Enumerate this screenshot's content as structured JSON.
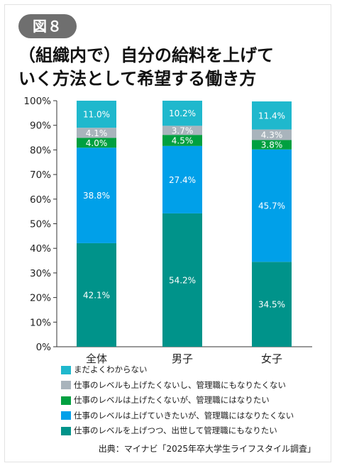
{
  "figure_label": "図８",
  "title_lines": [
    "（組織内で）自分の給料を上げて",
    "いく方法として希望する働き方"
  ],
  "source": "出典：マイナビ「2025年卒大学生ライフスタイル調査」",
  "chart_data": {
    "type": "bar",
    "stacked": true,
    "categories": [
      "全体",
      "男子",
      "女子"
    ],
    "yticks": [
      "0%",
      "10%",
      "20%",
      "30%",
      "40%",
      "50%",
      "60%",
      "70%",
      "80%",
      "90%",
      "100%"
    ],
    "ylim": [
      0,
      100
    ],
    "series": [
      {
        "name": "仕事のレベルを上げつつ、出世して管理職にもなりたい",
        "color": "#00938a",
        "values": [
          42.1,
          54.2,
          34.5
        ],
        "labels": [
          "42.1%",
          "54.2%",
          "34.5%"
        ]
      },
      {
        "name": "仕事のレベルは上げていきたいが、管理職にはなりたくない",
        "color": "#00a0e9",
        "values": [
          38.8,
          27.4,
          45.7
        ],
        "labels": [
          "38.8%",
          "27.4%",
          "45.7%"
        ]
      },
      {
        "name": "仕事のレベルは上げたくないが、管理職にはなりたい",
        "color": "#00a040",
        "values": [
          4.0,
          4.5,
          3.8
        ],
        "labels": [
          "4.0%",
          "4.5%",
          "3.8%"
        ]
      },
      {
        "name": "仕事のレベルも上げたくないし、管理職にもなりたくない",
        "color": "#a9b4bc",
        "values": [
          4.1,
          3.7,
          4.3
        ],
        "labels": [
          "4.1%",
          "3.7%",
          "4.3%"
        ]
      },
      {
        "name": "まだよくわからない",
        "color": "#1fb8cd",
        "values": [
          11.0,
          10.2,
          11.4
        ],
        "labels": [
          "11.0%",
          "10.2%",
          "11.4%"
        ]
      }
    ],
    "legend_position": "bottom",
    "grid": false
  }
}
